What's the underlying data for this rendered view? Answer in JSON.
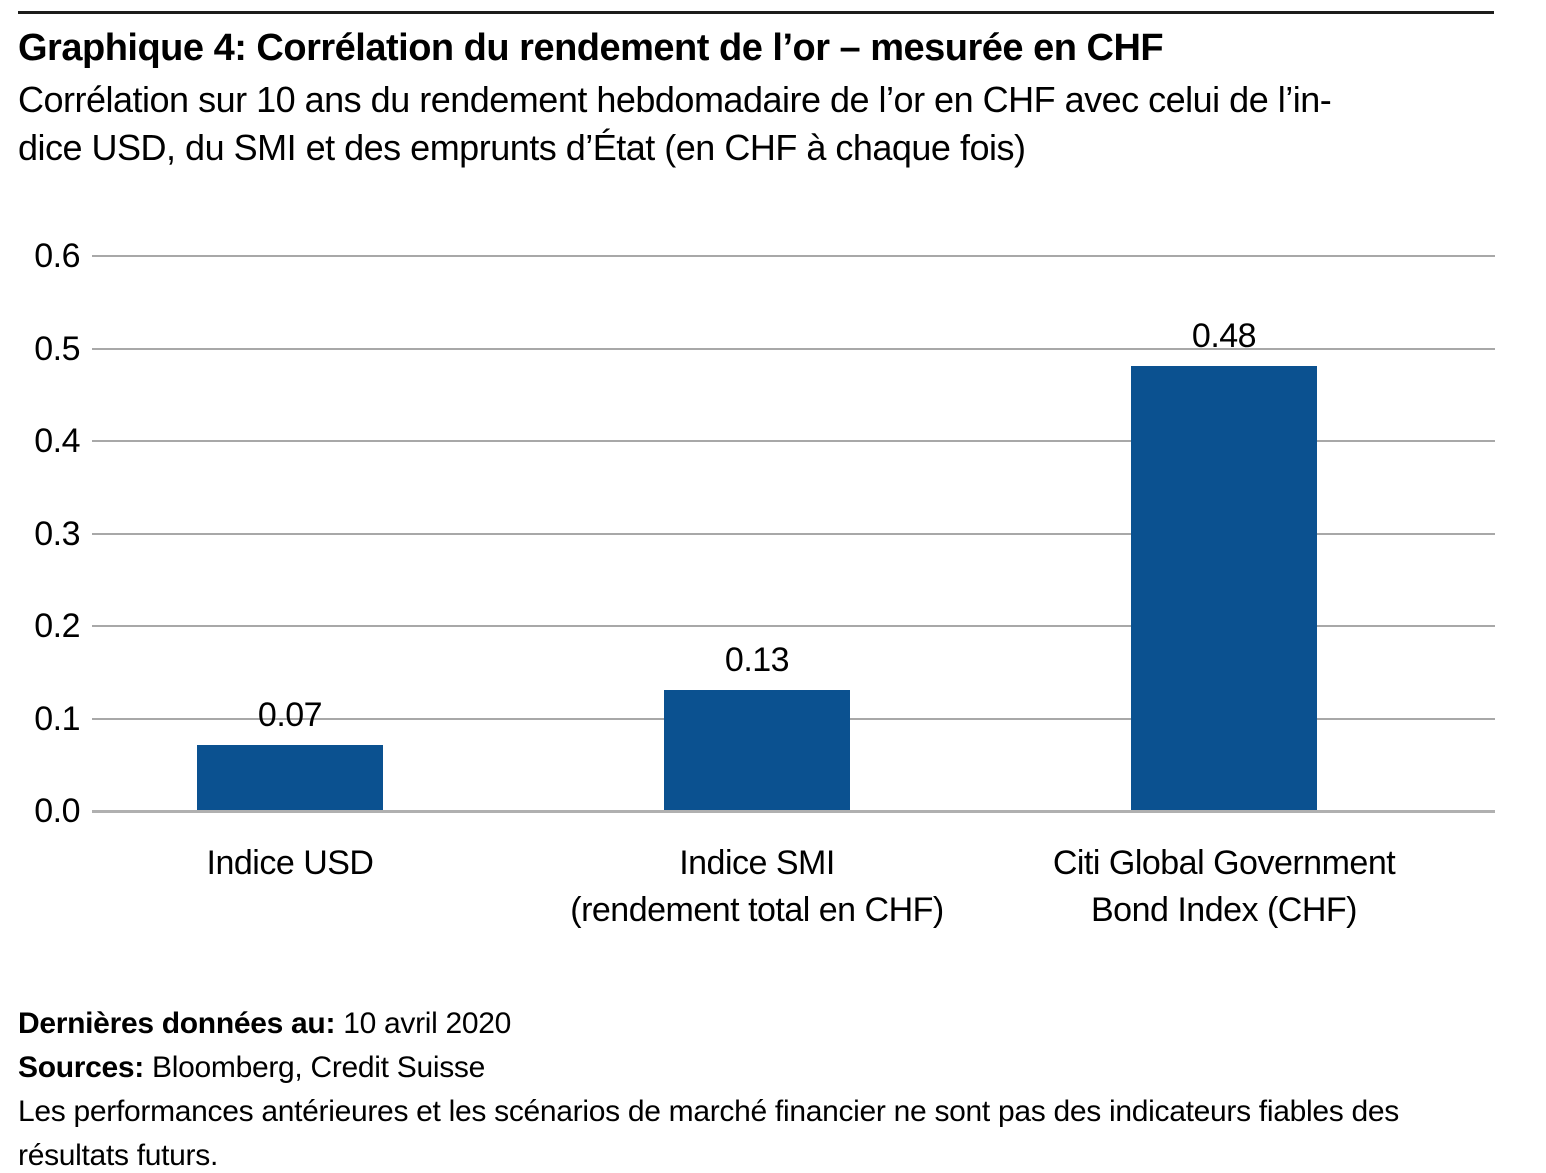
{
  "chart_data": {
    "type": "bar",
    "title": "Graphique 4: Corrélation du rendement de l’or – mesurée en CHF",
    "subtitle": "Corrélation sur 10 ans du rendement hebdomadaire de l’or en CHF avec celui de l’in-\ndice USD, du SMI et des emprunts d’État (en CHF à chaque fois)",
    "categories": [
      {
        "lines": [
          "Indice USD"
        ]
      },
      {
        "lines": [
          "Indice SMI",
          "(rendement total en CHF)"
        ]
      },
      {
        "lines": [
          "Citi Global Government",
          "Bond Index (CHF)"
        ]
      }
    ],
    "values": [
      0.07,
      0.13,
      0.48
    ],
    "value_labels": [
      "0.07",
      "0.13",
      "0.48"
    ],
    "xlabel": "",
    "ylabel": "",
    "ylim": [
      0,
      0.6
    ],
    "y_tick_labels": [
      "0.6",
      "0.5",
      "0.4",
      "0.3",
      "0.2",
      "0.1",
      "0.0"
    ],
    "grid": true,
    "legend": false
  },
  "colors": {
    "bar": "#0b5190",
    "gridline": "#a8a8a8",
    "axis": "#b0b0b0",
    "top_rule": "#1d1d1b",
    "text": "#000000"
  },
  "footer": {
    "last_data_label": "Dernières données au:",
    "last_data_value": "10 avril 2020",
    "sources_label": "Sources:",
    "sources_value": "Bloomberg, Credit Suisse",
    "disclaimer": "Les performances antérieures et les scénarios de marché financier ne sont pas des indicateurs fiables des\nrésultats futurs."
  }
}
